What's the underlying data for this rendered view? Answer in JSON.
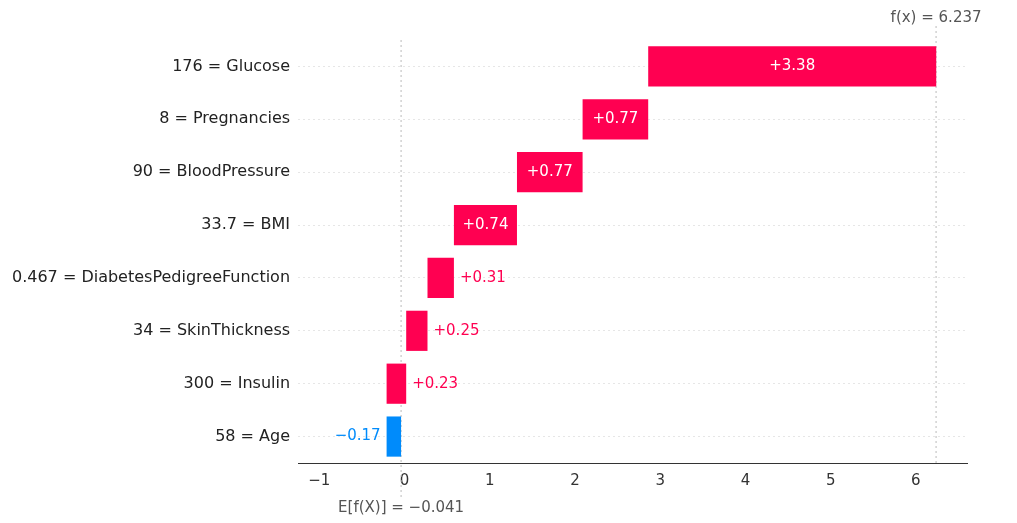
{
  "chart_data": {
    "type": "bar",
    "orientation": "horizontal",
    "categories": [
      "176 = Glucose",
      "8 = Pregnancies",
      "90 = BloodPressure",
      "33.7 = BMI",
      "0.467 = DiabetesPedigreeFunction",
      "34 = SkinThickness",
      "300 = Insulin",
      "58 = Age"
    ],
    "values": [
      3.38,
      0.77,
      0.77,
      0.74,
      0.31,
      0.25,
      0.23,
      -0.17
    ],
    "base": [
      2.859,
      2.089,
      1.319,
      0.579,
      0.269,
      0.019,
      -0.211,
      -0.041
    ],
    "colors": [
      "#ff0051",
      "#ff0051",
      "#ff0051",
      "#ff0051",
      "#ff0051",
      "#ff0051",
      "#ff0051",
      "#008bfb"
    ],
    "value_labels": [
      "+3.38",
      "+0.77",
      "+0.77",
      "+0.74",
      "+0.31",
      "+0.25",
      "+0.23",
      "−0.17"
    ],
    "xlim": [
      -1.25,
      6.6
    ],
    "xticks": [
      {
        "value": -1,
        "label": "−1"
      },
      0,
      1,
      2,
      3,
      4,
      5,
      6
    ],
    "ref_lines": [
      {
        "axis": "x",
        "value": -0.041,
        "label": "E[f(X)] = −0.041",
        "color": "#bbbbbb",
        "line_style": "dotted"
      },
      {
        "axis": "x",
        "value": 6.237,
        "label": "f(x) = 6.237",
        "color": "#bbbbbb",
        "line_style": "dotted"
      }
    ],
    "grid": "y",
    "legend": false
  }
}
